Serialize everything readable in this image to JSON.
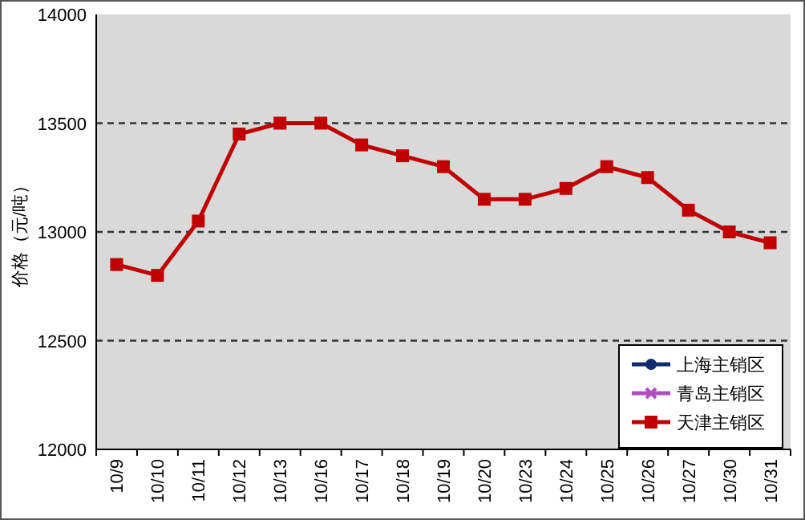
{
  "chart_data": {
    "type": "line",
    "ylabel": "价格（元/吨）",
    "categories": [
      "10/9",
      "10/10",
      "10/11",
      "10/12",
      "10/13",
      "10/16",
      "10/17",
      "10/18",
      "10/19",
      "10/20",
      "10/23",
      "10/24",
      "10/25",
      "10/26",
      "10/27",
      "10/30",
      "10/31"
    ],
    "series": [
      {
        "name": "上海主销区",
        "color": "#0f2d6e",
        "marker": "circle",
        "values": [
          null,
          null,
          null,
          null,
          null,
          null,
          null,
          null,
          null,
          null,
          null,
          null,
          null,
          null,
          null,
          null,
          null
        ]
      },
      {
        "name": "青岛主销区",
        "color": "#b04ec0",
        "marker": "cross",
        "values": [
          null,
          null,
          null,
          null,
          null,
          null,
          null,
          null,
          null,
          null,
          null,
          null,
          null,
          null,
          null,
          null,
          null
        ]
      },
      {
        "name": "天津主销区",
        "color": "#c00000",
        "marker": "square",
        "values": [
          12850,
          12800,
          13050,
          13450,
          13500,
          13500,
          13400,
          13350,
          13300,
          13150,
          13150,
          13200,
          13300,
          13250,
          13100,
          13000,
          12950
        ]
      }
    ],
    "ylim": [
      12000,
      14000
    ],
    "yticks": [
      12000,
      12500,
      13000,
      13500,
      14000
    ],
    "grid": "y",
    "legend": "bottom right",
    "line_style": "solid"
  }
}
